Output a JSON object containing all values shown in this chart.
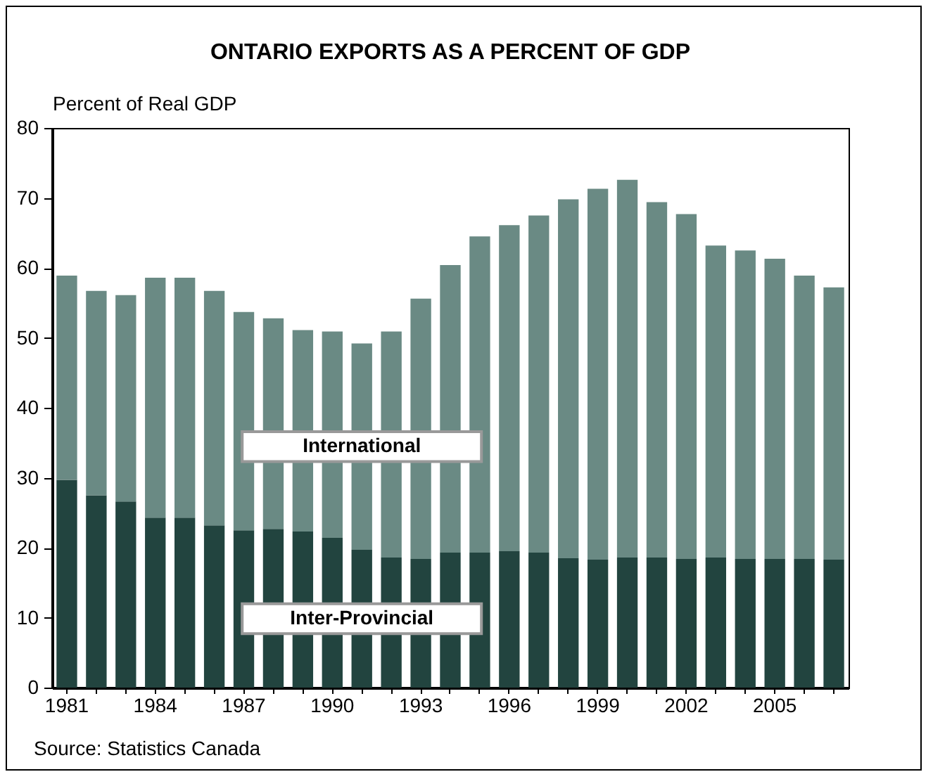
{
  "chart_data": {
    "type": "bar",
    "title": "ONTARIO EXPORTS AS A PERCENT OF GDP",
    "ylabel": "Percent of Real GDP",
    "annotations": [
      "Source: Statistics Canada"
    ],
    "categories": [
      "1981",
      null,
      null,
      "1984",
      null,
      null,
      "1987",
      null,
      null,
      "1990",
      null,
      null,
      "1993",
      null,
      null,
      "1996",
      null,
      null,
      "1999",
      null,
      null,
      "2002",
      null,
      null,
      "2005",
      null,
      null
    ],
    "series": [
      {
        "name": "Inter-Provincial",
        "color": "#22443f",
        "values": [
          29.7,
          27.5,
          26.6,
          24.3,
          24.3,
          23.2,
          22.5,
          22.7,
          22.3,
          21.4,
          19.7,
          18.6,
          18.4,
          19.3,
          19.3,
          19.5,
          19.3,
          18.5,
          18.3,
          18.6,
          18.6,
          18.4,
          18.6,
          18.4,
          18.4,
          18.4,
          18.3
        ]
      },
      {
        "name": "International",
        "color": "#6a8a84",
        "values": [
          29.2,
          29.2,
          29.5,
          34.3,
          34.3,
          33.5,
          31.2,
          30.1,
          28.8,
          29.5,
          29.5,
          32.3,
          37.2,
          41.1,
          45.2,
          46.6,
          48.2,
          51.3,
          53.0,
          54.0,
          50.8,
          49.3,
          44.6,
          44.1,
          42.9,
          40.5,
          38.9
        ]
      }
    ],
    "stacked": true,
    "ylim": [
      0,
      80
    ],
    "yticks": [
      0,
      10,
      20,
      30,
      40,
      50,
      60,
      70,
      80
    ],
    "grid": false,
    "legend": false
  }
}
